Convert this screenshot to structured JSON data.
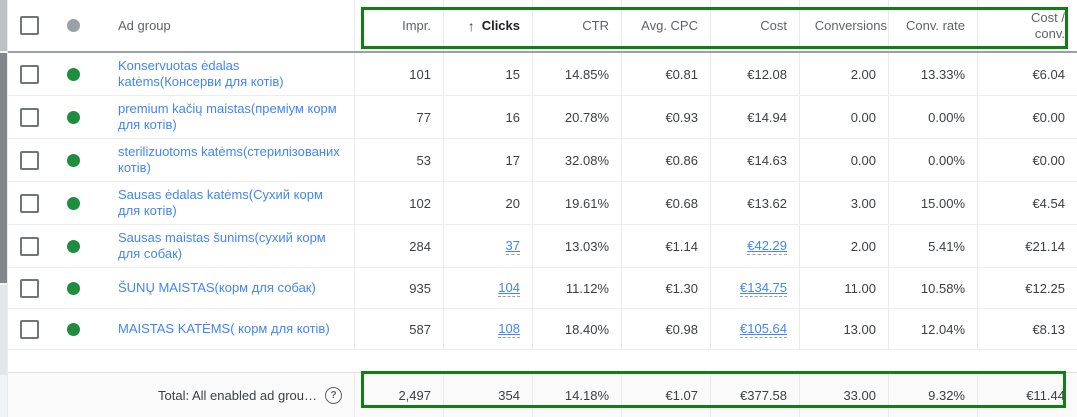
{
  "colors": {
    "annotation_green": "#0f7e13",
    "status_enabled_green": "#1e8e3e",
    "link_blue": "#4285f4",
    "header_dot_gray": "#9aa0a6"
  },
  "icons": {
    "sort_ascending_arrow": "↑",
    "help_icon_glyph": "?",
    "status_dot": "circle",
    "checkbox": "square-outline"
  },
  "table": {
    "ad_group_header": "Ad group",
    "sorted_column": "clicks",
    "columns": [
      {
        "key": "impr",
        "label": "Impr."
      },
      {
        "key": "clicks",
        "label": "Clicks",
        "sorted": "ascending"
      },
      {
        "key": "ctr",
        "label": "CTR"
      },
      {
        "key": "avg-cpc",
        "label": "Avg. CPC"
      },
      {
        "key": "cost",
        "label": "Cost"
      },
      {
        "key": "conversions",
        "label": "Conversions"
      },
      {
        "key": "conv-rate",
        "label": "Conv. rate"
      },
      {
        "key": "cost-conv",
        "label": "Cost /\nconv."
      }
    ],
    "rows": [
      {
        "ad_group": "Konservuotas ėdalas katėms(Консерви для котів)",
        "status": "enabled",
        "cells": [
          "101",
          "15",
          "14.85%",
          "€0.81",
          "€12.08",
          "2.00",
          "13.33%",
          "€6.04"
        ],
        "linked_cells": []
      },
      {
        "ad_group": "premium kačių maistas(преміум корм для котів)",
        "status": "enabled",
        "cells": [
          "77",
          "16",
          "20.78%",
          "€0.93",
          "€14.94",
          "0.00",
          "0.00%",
          "€0.00"
        ],
        "linked_cells": []
      },
      {
        "ad_group": "sterilizuotoms katėms(стерилізованих котів)",
        "status": "enabled",
        "cells": [
          "53",
          "17",
          "32.08%",
          "€0.86",
          "€14.63",
          "0.00",
          "0.00%",
          "€0.00"
        ],
        "linked_cells": []
      },
      {
        "ad_group": "Sausas ėdalas katėms(Сухий корм для котів)",
        "status": "enabled",
        "cells": [
          "102",
          "20",
          "19.61%",
          "€0.68",
          "€13.62",
          "3.00",
          "15.00%",
          "€4.54"
        ],
        "linked_cells": []
      },
      {
        "ad_group": "Sausas maistas šunims(сухий корм для собак)",
        "status": "enabled",
        "cells": [
          "284",
          "37",
          "13.03%",
          "€1.14",
          "€42.29",
          "2.00",
          "5.41%",
          "€21.14"
        ],
        "linked_cells": [
          1,
          4
        ]
      },
      {
        "ad_group": "ŠUNŲ MAISTAS(корм для собак)",
        "status": "enabled",
        "cells": [
          "935",
          "104",
          "11.12%",
          "€1.30",
          "€134.75",
          "11.00",
          "10.58%",
          "€12.25"
        ],
        "linked_cells": [
          1,
          4
        ]
      },
      {
        "ad_group": "MAISTAS KATĖMS( корм для котів)",
        "status": "enabled",
        "cells": [
          "587",
          "108",
          "18.40%",
          "€0.98",
          "€105.64",
          "13.00",
          "12.04%",
          "€8.13"
        ],
        "linked_cells": [
          1,
          4
        ]
      }
    ],
    "total": {
      "label": "Total: All enabled ad grou…",
      "cells": [
        "2,497",
        "354",
        "14.18%",
        "€1.07",
        "€377.58",
        "33.00",
        "9.32%",
        "€11.44"
      ]
    }
  }
}
